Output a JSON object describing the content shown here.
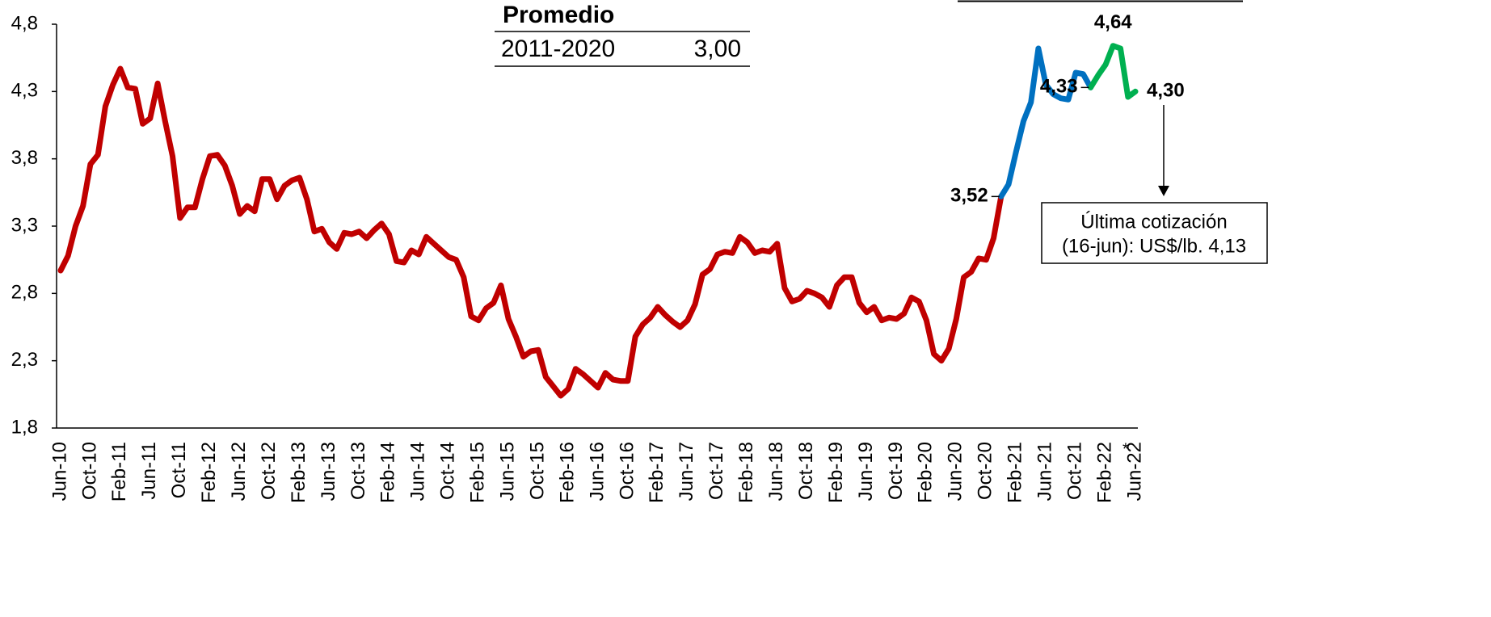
{
  "chart_data": {
    "type": "line",
    "categories": [
      "Jun-10",
      null,
      null,
      null,
      "Oct-10",
      null,
      null,
      null,
      "Feb-11",
      null,
      null,
      null,
      "Jun-11",
      null,
      null,
      null,
      "Oct-11",
      null,
      null,
      null,
      "Feb-12",
      null,
      null,
      null,
      "Jun-12",
      null,
      null,
      null,
      "Oct-12",
      null,
      null,
      null,
      "Feb-13",
      null,
      null,
      null,
      "Jun-13",
      null,
      null,
      null,
      "Oct-13",
      null,
      null,
      null,
      "Feb-14",
      null,
      null,
      null,
      "Jun-14",
      null,
      null,
      null,
      "Oct-14",
      null,
      null,
      null,
      "Feb-15",
      null,
      null,
      null,
      "Jun-15",
      null,
      null,
      null,
      "Oct-15",
      null,
      null,
      null,
      "Feb-16",
      null,
      null,
      null,
      "Jun-16",
      null,
      null,
      null,
      "Oct-16",
      null,
      null,
      null,
      "Feb-17",
      null,
      null,
      null,
      "Jun-17",
      null,
      null,
      null,
      "Oct-17",
      null,
      null,
      null,
      "Feb-18",
      null,
      null,
      null,
      "Jun-18",
      null,
      null,
      null,
      "Oct-18",
      null,
      null,
      null,
      "Feb-19",
      null,
      null,
      null,
      "Jun-19",
      null,
      null,
      null,
      "Oct-19",
      null,
      null,
      null,
      "Feb-20",
      null,
      null,
      null,
      "Jun-20",
      null,
      null,
      null,
      "Oct-20",
      null,
      null,
      null,
      "Feb-21",
      null,
      null,
      null,
      "Jun-21",
      null,
      null,
      null,
      "Oct-21",
      null,
      null,
      null,
      "Feb-22",
      null,
      null,
      null,
      "Jun-22"
    ],
    "x_label_note": "*",
    "ylim": [
      1.8,
      4.8
    ],
    "yticks": [
      {
        "value": 1.8,
        "label": "1,8"
      },
      {
        "value": 2.3,
        "label": "2,3"
      },
      {
        "value": 2.8,
        "label": "2,8"
      },
      {
        "value": 3.3,
        "label": "3,3"
      },
      {
        "value": 3.8,
        "label": "3,8"
      },
      {
        "value": 4.3,
        "label": "4,3"
      },
      {
        "value": 4.8,
        "label": "4,8"
      }
    ],
    "grid": false,
    "series": [
      {
        "color": "#c00000",
        "values": [
          2.97,
          3.08,
          3.3,
          3.45,
          3.76,
          3.83,
          4.19,
          4.35,
          4.47,
          4.33,
          4.32,
          4.06,
          4.1,
          4.36,
          4.08,
          3.82,
          3.36,
          3.44,
          3.44,
          3.65,
          3.82,
          3.83,
          3.75,
          3.6,
          3.39,
          3.45,
          3.41,
          3.65,
          3.65,
          3.5,
          3.6,
          3.64,
          3.66,
          3.5,
          3.26,
          3.28,
          3.18,
          3.13,
          3.25,
          3.24,
          3.26,
          3.21,
          3.27,
          3.32,
          3.24,
          3.04,
          3.03,
          3.12,
          3.09,
          3.22,
          3.17,
          3.12,
          3.07,
          3.05,
          2.92,
          2.63,
          2.6,
          2.69,
          2.73,
          2.86,
          2.61,
          2.48,
          2.33,
          2.37,
          2.38,
          2.18,
          2.11,
          2.04,
          2.09,
          2.24,
          2.2,
          2.15,
          2.1,
          2.21,
          2.16,
          2.15,
          2.15,
          2.48,
          2.57,
          2.62,
          2.7,
          2.64,
          2.59,
          2.55,
          2.6,
          2.72,
          2.94,
          2.98,
          3.09,
          3.11,
          3.1,
          3.22,
          3.18,
          3.1,
          3.12,
          3.11,
          3.17,
          2.84,
          2.74,
          2.76,
          2.82,
          2.8,
          2.77,
          2.7,
          2.86,
          2.92,
          2.92,
          2.73,
          2.66,
          2.7,
          2.6,
          2.62,
          2.61,
          2.65,
          2.77,
          2.74,
          2.6,
          2.35,
          2.3,
          2.39,
          2.61,
          2.92,
          2.96,
          3.06,
          3.05,
          3.21,
          3.52,
          null,
          null,
          null,
          null,
          null,
          null,
          null,
          null,
          null,
          null,
          null,
          null,
          null,
          null,
          null,
          null,
          null,
          null
        ],
        "value_labels": [
          null,
          null,
          null,
          null,
          null,
          null,
          null,
          null,
          null,
          null,
          null,
          null,
          null,
          null,
          null,
          null,
          null,
          null,
          null,
          null,
          null,
          null,
          null,
          null,
          null,
          null,
          null,
          null,
          null,
          null,
          null,
          null,
          null,
          null,
          null,
          null,
          null,
          null,
          null,
          null,
          null,
          null,
          null,
          null,
          null,
          null,
          null,
          null,
          null,
          null,
          null,
          null,
          null,
          null,
          null,
          null,
          null,
          null,
          null,
          null,
          null,
          null,
          null,
          null,
          null,
          null,
          null,
          null,
          null,
          null,
          null,
          null,
          null,
          null,
          null,
          null,
          null,
          null,
          null,
          null,
          null,
          null,
          null,
          null,
          null,
          null,
          null,
          null,
          null,
          null,
          null,
          null,
          null,
          null,
          null,
          null,
          null,
          null,
          null,
          null,
          null,
          null,
          null,
          null,
          null,
          null,
          null,
          null,
          null,
          null,
          null,
          null,
          null,
          null,
          null,
          null,
          null,
          null,
          null,
          null,
          null,
          null,
          null,
          null,
          null,
          null,
          "3,52",
          null,
          null,
          null,
          null,
          null,
          null,
          null,
          null,
          null,
          null,
          null,
          null,
          null,
          null,
          null,
          null,
          null,
          null
        ]
      },
      {
        "color": "#0070c0",
        "values": [
          null,
          null,
          null,
          null,
          null,
          null,
          null,
          null,
          null,
          null,
          null,
          null,
          null,
          null,
          null,
          null,
          null,
          null,
          null,
          null,
          null,
          null,
          null,
          null,
          null,
          null,
          null,
          null,
          null,
          null,
          null,
          null,
          null,
          null,
          null,
          null,
          null,
          null,
          null,
          null,
          null,
          null,
          null,
          null,
          null,
          null,
          null,
          null,
          null,
          null,
          null,
          null,
          null,
          null,
          null,
          null,
          null,
          null,
          null,
          null,
          null,
          null,
          null,
          null,
          null,
          null,
          null,
          null,
          null,
          null,
          null,
          null,
          null,
          null,
          null,
          null,
          null,
          null,
          null,
          null,
          null,
          null,
          null,
          null,
          null,
          null,
          null,
          null,
          null,
          null,
          null,
          null,
          null,
          null,
          null,
          null,
          null,
          null,
          null,
          null,
          null,
          null,
          null,
          null,
          null,
          null,
          null,
          null,
          null,
          null,
          null,
          null,
          null,
          null,
          null,
          null,
          null,
          null,
          null,
          null,
          null,
          null,
          null,
          null,
          null,
          null,
          3.52,
          3.61,
          3.85,
          4.08,
          4.22,
          4.62,
          4.35,
          4.28,
          4.25,
          4.24,
          4.44,
          4.43,
          4.33,
          null,
          null,
          null,
          null,
          null,
          null
        ],
        "value_labels": [
          null,
          null,
          null,
          null,
          null,
          null,
          null,
          null,
          null,
          null,
          null,
          null,
          null,
          null,
          null,
          null,
          null,
          null,
          null,
          null,
          null,
          null,
          null,
          null,
          null,
          null,
          null,
          null,
          null,
          null,
          null,
          null,
          null,
          null,
          null,
          null,
          null,
          null,
          null,
          null,
          null,
          null,
          null,
          null,
          null,
          null,
          null,
          null,
          null,
          null,
          null,
          null,
          null,
          null,
          null,
          null,
          null,
          null,
          null,
          null,
          null,
          null,
          null,
          null,
          null,
          null,
          null,
          null,
          null,
          null,
          null,
          null,
          null,
          null,
          null,
          null,
          null,
          null,
          null,
          null,
          null,
          null,
          null,
          null,
          null,
          null,
          null,
          null,
          null,
          null,
          null,
          null,
          null,
          null,
          null,
          null,
          null,
          null,
          null,
          null,
          null,
          null,
          null,
          null,
          null,
          null,
          null,
          null,
          null,
          null,
          null,
          null,
          null,
          null,
          null,
          null,
          null,
          null,
          null,
          null,
          null,
          null,
          null,
          null,
          null,
          null,
          null,
          null,
          null,
          null,
          null,
          null,
          null,
          null,
          null,
          null,
          null,
          null,
          "4,33",
          null,
          null,
          null,
          null,
          null,
          null
        ]
      },
      {
        "color": "#00b050",
        "values": [
          null,
          null,
          null,
          null,
          null,
          null,
          null,
          null,
          null,
          null,
          null,
          null,
          null,
          null,
          null,
          null,
          null,
          null,
          null,
          null,
          null,
          null,
          null,
          null,
          null,
          null,
          null,
          null,
          null,
          null,
          null,
          null,
          null,
          null,
          null,
          null,
          null,
          null,
          null,
          null,
          null,
          null,
          null,
          null,
          null,
          null,
          null,
          null,
          null,
          null,
          null,
          null,
          null,
          null,
          null,
          null,
          null,
          null,
          null,
          null,
          null,
          null,
          null,
          null,
          null,
          null,
          null,
          null,
          null,
          null,
          null,
          null,
          null,
          null,
          null,
          null,
          null,
          null,
          null,
          null,
          null,
          null,
          null,
          null,
          null,
          null,
          null,
          null,
          null,
          null,
          null,
          null,
          null,
          null,
          null,
          null,
          null,
          null,
          null,
          null,
          null,
          null,
          null,
          null,
          null,
          null,
          null,
          null,
          null,
          null,
          null,
          null,
          null,
          null,
          null,
          null,
          null,
          null,
          null,
          null,
          null,
          null,
          null,
          null,
          null,
          null,
          null,
          null,
          null,
          null,
          null,
          null,
          null,
          null,
          null,
          null,
          null,
          null,
          4.33,
          4.42,
          4.5,
          4.64,
          4.62,
          4.26,
          4.3
        ],
        "value_labels": [
          null,
          null,
          null,
          null,
          null,
          null,
          null,
          null,
          null,
          null,
          null,
          null,
          null,
          null,
          null,
          null,
          null,
          null,
          null,
          null,
          null,
          null,
          null,
          null,
          null,
          null,
          null,
          null,
          null,
          null,
          null,
          null,
          null,
          null,
          null,
          null,
          null,
          null,
          null,
          null,
          null,
          null,
          null,
          null,
          null,
          null,
          null,
          null,
          null,
          null,
          null,
          null,
          null,
          null,
          null,
          null,
          null,
          null,
          null,
          null,
          null,
          null,
          null,
          null,
          null,
          null,
          null,
          null,
          null,
          null,
          null,
          null,
          null,
          null,
          null,
          null,
          null,
          null,
          null,
          null,
          null,
          null,
          null,
          null,
          null,
          null,
          null,
          null,
          null,
          null,
          null,
          null,
          null,
          null,
          null,
          null,
          null,
          null,
          null,
          null,
          null,
          null,
          null,
          null,
          null,
          null,
          null,
          null,
          null,
          null,
          null,
          null,
          null,
          null,
          null,
          null,
          null,
          null,
          null,
          null,
          null,
          null,
          null,
          null,
          null,
          null,
          null,
          null,
          null,
          null,
          null,
          null,
          null,
          null,
          null,
          null,
          null,
          null,
          null,
          null,
          null,
          "4,64",
          null,
          null,
          "4,30"
        ]
      }
    ],
    "table": {
      "title": "Promedio",
      "rows": [
        [
          "2011-2020",
          "3,00"
        ]
      ]
    },
    "note": [
      "Última cotización",
      "(16-jun): US$/lb. 4,13"
    ]
  }
}
